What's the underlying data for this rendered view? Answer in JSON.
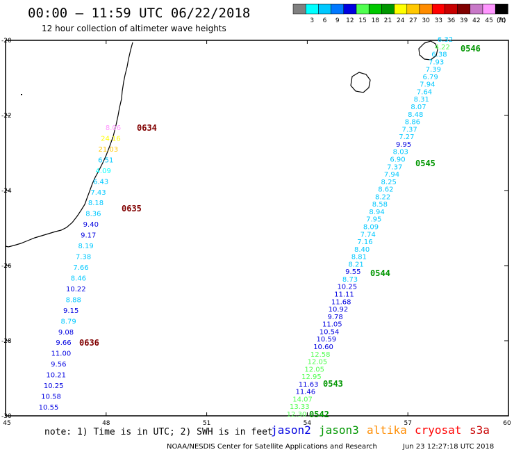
{
  "header": {
    "title": "00:00 — 11:59 UTC 06/22/2018",
    "subtitle": "12 hour collection of altimeter wave heights"
  },
  "legend": {
    "unit_label": "(ft)",
    "bins": [
      {
        "label": "",
        "color": "#808080"
      },
      {
        "label": "3",
        "color": "#00ffff"
      },
      {
        "label": "6",
        "color": "#00c8ff"
      },
      {
        "label": "9",
        "color": "#0078ff"
      },
      {
        "label": "12",
        "color": "#0000e0"
      },
      {
        "label": "15",
        "color": "#50ff50"
      },
      {
        "label": "18",
        "color": "#00c800"
      },
      {
        "label": "21",
        "color": "#009600"
      },
      {
        "label": "24",
        "color": "#ffff00"
      },
      {
        "label": "27",
        "color": "#ffc800"
      },
      {
        "label": "30",
        "color": "#ff8c00"
      },
      {
        "label": "33",
        "color": "#ff0000"
      },
      {
        "label": "36",
        "color": "#c80000"
      },
      {
        "label": "39",
        "color": "#800000"
      },
      {
        "label": "42",
        "color": "#c878c8"
      },
      {
        "label": "45",
        "color": "#ff96ff"
      },
      {
        "label": "70",
        "color": "#000000"
      }
    ]
  },
  "axes": {
    "x_ticks": [
      {
        "label": "45",
        "lon": 45
      },
      {
        "label": "48",
        "lon": 48
      },
      {
        "label": "51",
        "lon": 51
      },
      {
        "label": "54",
        "lon": 54
      },
      {
        "label": "57",
        "lon": 57
      },
      {
        "label": "60",
        "lon": 60
      }
    ],
    "y_ticks": [
      {
        "label": "-20",
        "lat": -20
      },
      {
        "label": "-22",
        "lat": -22
      },
      {
        "label": "-24",
        "lat": -24
      },
      {
        "label": "-26",
        "lat": -26
      },
      {
        "label": "-28",
        "lat": -28
      },
      {
        "label": "-30",
        "lat": -30
      }
    ]
  },
  "tracks": {
    "west": [
      {
        "v": "8.06",
        "c": "#ff96ff"
      },
      {
        "v": "24.16",
        "c": "#ffff00"
      },
      {
        "v": "21.03",
        "c": "#ffc800"
      },
      {
        "v": "6.51",
        "c": "#00c8ff"
      },
      {
        "v": "4.09",
        "c": "#00ffff"
      },
      {
        "v": "6.43",
        "c": "#00c8ff"
      },
      {
        "v": "7.43",
        "c": "#00c8ff"
      },
      {
        "v": "8.18",
        "c": "#00c8ff"
      },
      {
        "v": "8.36",
        "c": "#00c8ff"
      },
      {
        "v": "9.40",
        "c": "#0000e0"
      },
      {
        "v": "9.17",
        "c": "#0000e0"
      },
      {
        "v": "8.19",
        "c": "#00c8ff"
      },
      {
        "v": "7.38",
        "c": "#00c8ff"
      },
      {
        "v": "7.66",
        "c": "#00c8ff"
      },
      {
        "v": "8.46",
        "c": "#00c8ff"
      },
      {
        "v": "10.22",
        "c": "#0000e0"
      },
      {
        "v": "8.88",
        "c": "#00c8ff"
      },
      {
        "v": "9.15",
        "c": "#0000e0"
      },
      {
        "v": "8.79",
        "c": "#00c8ff"
      },
      {
        "v": "9.08",
        "c": "#0000e0"
      },
      {
        "v": "9.66",
        "c": "#0000e0"
      },
      {
        "v": "11.00",
        "c": "#0000e0"
      },
      {
        "v": "9.56",
        "c": "#0000e0"
      },
      {
        "v": "10.21",
        "c": "#0000e0"
      },
      {
        "v": "10.25",
        "c": "#0000e0"
      },
      {
        "v": "10.58",
        "c": "#0000e0"
      },
      {
        "v": "10.55",
        "c": "#0000e0"
      }
    ],
    "east": [
      {
        "v": "6.32",
        "c": "#00c8ff"
      },
      {
        "v": "4.22",
        "c": "#50ff50"
      },
      {
        "v": "6.38",
        "c": "#00c8ff"
      },
      {
        "v": "7.93",
        "c": "#00c8ff"
      },
      {
        "v": "7.39",
        "c": "#00c8ff"
      },
      {
        "v": "6.79",
        "c": "#00c8ff"
      },
      {
        "v": "7.94",
        "c": "#00c8ff"
      },
      {
        "v": "7.64",
        "c": "#00c8ff"
      },
      {
        "v": "8.31",
        "c": "#00c8ff"
      },
      {
        "v": "8.07",
        "c": "#00c8ff"
      },
      {
        "v": "8.48",
        "c": "#00c8ff"
      },
      {
        "v": "8.86",
        "c": "#00c8ff"
      },
      {
        "v": "7.37",
        "c": "#00c8ff"
      },
      {
        "v": "7.27",
        "c": "#00c8ff"
      },
      {
        "v": "9.95",
        "c": "#0000e0"
      },
      {
        "v": "8.03",
        "c": "#00c8ff"
      },
      {
        "v": "6.90",
        "c": "#00c8ff"
      },
      {
        "v": "7.37",
        "c": "#00c8ff"
      },
      {
        "v": "7.94",
        "c": "#00c8ff"
      },
      {
        "v": "8.25",
        "c": "#00c8ff"
      },
      {
        "v": "8.62",
        "c": "#00c8ff"
      },
      {
        "v": "8.22",
        "c": "#00c8ff"
      },
      {
        "v": "8.58",
        "c": "#00c8ff"
      },
      {
        "v": "8.94",
        "c": "#00c8ff"
      },
      {
        "v": "7.95",
        "c": "#00c8ff"
      },
      {
        "v": "8.09",
        "c": "#00c8ff"
      },
      {
        "v": "7.74",
        "c": "#00c8ff"
      },
      {
        "v": "7.16",
        "c": "#00c8ff"
      },
      {
        "v": "8.40",
        "c": "#00c8ff"
      },
      {
        "v": "8.81",
        "c": "#00c8ff"
      },
      {
        "v": "8.21",
        "c": "#00c8ff"
      },
      {
        "v": "9.55",
        "c": "#0000e0"
      },
      {
        "v": "8.73",
        "c": "#00c8ff"
      },
      {
        "v": "10.25",
        "c": "#0000e0"
      },
      {
        "v": "11.11",
        "c": "#0000e0"
      },
      {
        "v": "11.68",
        "c": "#0000e0"
      },
      {
        "v": "10.92",
        "c": "#0000e0"
      },
      {
        "v": "9.78",
        "c": "#0000e0"
      },
      {
        "v": "11.05",
        "c": "#0000e0"
      },
      {
        "v": "10.54",
        "c": "#0000e0"
      },
      {
        "v": "10.59",
        "c": "#0000e0"
      },
      {
        "v": "10.60",
        "c": "#0000e0"
      },
      {
        "v": "12.58",
        "c": "#50ff50"
      },
      {
        "v": "12.05",
        "c": "#50ff50"
      },
      {
        "v": "12.05",
        "c": "#50ff50"
      },
      {
        "v": "12.95",
        "c": "#50ff50"
      },
      {
        "v": "11.63",
        "c": "#0000e0"
      },
      {
        "v": "11.46",
        "c": "#0000e0"
      },
      {
        "v": "14.07",
        "c": "#50ff50"
      },
      {
        "v": "13.33",
        "c": "#50ff50"
      },
      {
        "v": "12.30",
        "c": "#50ff50"
      }
    ]
  },
  "time_labels": [
    {
      "t": "0634",
      "c": "#800000"
    },
    {
      "t": "0635",
      "c": "#800000"
    },
    {
      "t": "0636",
      "c": "#800000"
    },
    {
      "t": "0546",
      "c": "#009600"
    },
    {
      "t": "0545",
      "c": "#009600"
    },
    {
      "t": "0544",
      "c": "#009600"
    },
    {
      "t": "0543",
      "c": "#009600"
    },
    {
      "t": "0542",
      "c": "#009600"
    }
  ],
  "footer": {
    "note": "note: 1) Time is in UTC; 2) SWH is in feet",
    "satellites": [
      {
        "name": "jason2",
        "color": "#0000e0"
      },
      {
        "name": "jason3",
        "color": "#009600"
      },
      {
        "name": "altika",
        "color": "#ff8c00"
      },
      {
        "name": "cryosat",
        "color": "#ff0000"
      },
      {
        "name": "s3a",
        "color": "#c80000"
      }
    ],
    "credit": "NOAA/NESDIS Center for Satellite Applications and Research",
    "timestamp": "Jun 23 12:27:18 UTC 2018"
  }
}
